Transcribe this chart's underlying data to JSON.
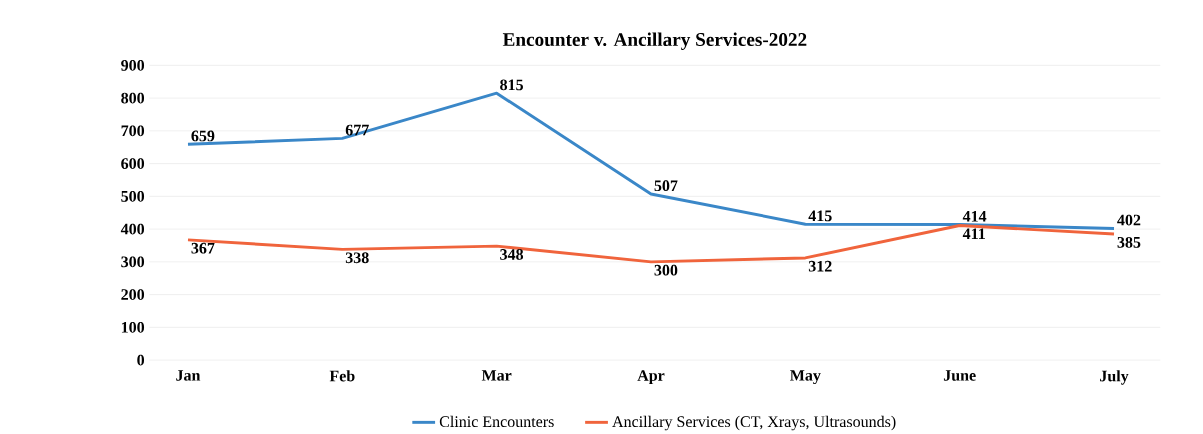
{
  "chart_data": {
    "type": "line",
    "title": "Encounter v. Ancillary Services-2022",
    "categories": [
      "Jan",
      "Feb",
      "Mar",
      "Apr",
      "May",
      "June",
      "July"
    ],
    "series": [
      {
        "name": "Clinic Encounters",
        "color": "#3a87c8",
        "values": [
          659,
          677,
          815,
          507,
          415,
          414,
          402
        ]
      },
      {
        "name": "Ancillary Services (CT, Xrays, Ultrasounds)",
        "color": "#f0643c",
        "values": [
          367,
          338,
          348,
          300,
          312,
          411,
          385
        ]
      }
    ],
    "ylim": [
      0,
      900
    ],
    "yticks": [
      0,
      100,
      200,
      300,
      400,
      500,
      600,
      700,
      800,
      900
    ],
    "grid": "y",
    "legend": "bottom",
    "data_labels": true,
    "marker": "none",
    "line_style": "solid"
  }
}
